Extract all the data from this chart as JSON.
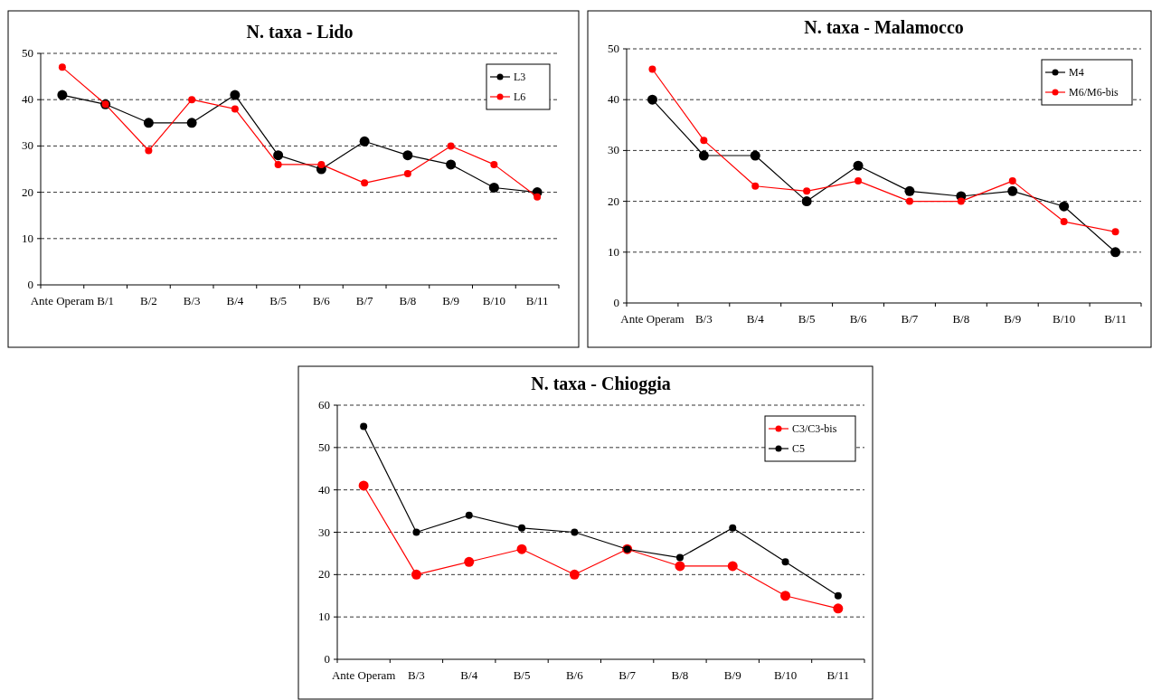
{
  "chart_data": [
    {
      "type": "line",
      "title": "N. taxa - Lido",
      "categories": [
        "Ante Operam",
        "B/1",
        "B/2",
        "B/3",
        "B/4",
        "B/5",
        "B/6",
        "B/7",
        "B/8",
        "B/9",
        "B/10",
        "B/11"
      ],
      "ylim": [
        0,
        50
      ],
      "yticks": [
        0,
        10,
        20,
        30,
        40,
        50
      ],
      "grid": "y",
      "legend": "top right",
      "marker": "circle",
      "line_style": "solid",
      "series": [
        {
          "name": "L3",
          "color": "#000000",
          "values": [
            41,
            39,
            35,
            35,
            41,
            28,
            25,
            31,
            28,
            26,
            21,
            20
          ]
        },
        {
          "name": "L6",
          "color": "#ff0000",
          "values": [
            47,
            39,
            29,
            40,
            38,
            26,
            26,
            22,
            24,
            30,
            26,
            19
          ]
        }
      ]
    },
    {
      "type": "line",
      "title": "N. taxa - Malamocco",
      "categories": [
        "Ante Operam",
        "B/3",
        "B/4",
        "B/5",
        "B/6",
        "B/7",
        "B/8",
        "B/9",
        "B/10",
        "B/11"
      ],
      "ylim": [
        0,
        50
      ],
      "yticks": [
        0,
        10,
        20,
        30,
        40,
        50
      ],
      "grid": "y",
      "legend": "top right",
      "marker": "circle",
      "line_style": "solid",
      "series": [
        {
          "name": "M4",
          "color": "#000000",
          "values": [
            40,
            29,
            29,
            20,
            27,
            22,
            21,
            22,
            19,
            10
          ]
        },
        {
          "name": "M6/M6-bis",
          "color": "#ff0000",
          "values": [
            46,
            32,
            23,
            22,
            24,
            20,
            20,
            24,
            16,
            14
          ]
        }
      ]
    },
    {
      "type": "line",
      "title": "N. taxa - Chioggia",
      "categories": [
        "Ante Operam",
        "B/3",
        "B/4",
        "B/5",
        "B/6",
        "B/7",
        "B/8",
        "B/9",
        "B/10",
        "B/11"
      ],
      "ylim": [
        0,
        60
      ],
      "yticks": [
        0,
        10,
        20,
        30,
        40,
        50,
        60
      ],
      "grid": "y",
      "legend": "top right",
      "marker": "circle",
      "line_style": "solid",
      "series": [
        {
          "name": "C3/C3-bis",
          "color": "#ff0000",
          "values": [
            41,
            20,
            23,
            26,
            20,
            26,
            22,
            22,
            15,
            12
          ]
        },
        {
          "name": "C5",
          "color": "#000000",
          "values": [
            55,
            30,
            34,
            31,
            30,
            26,
            24,
            31,
            23,
            15
          ]
        }
      ]
    }
  ]
}
